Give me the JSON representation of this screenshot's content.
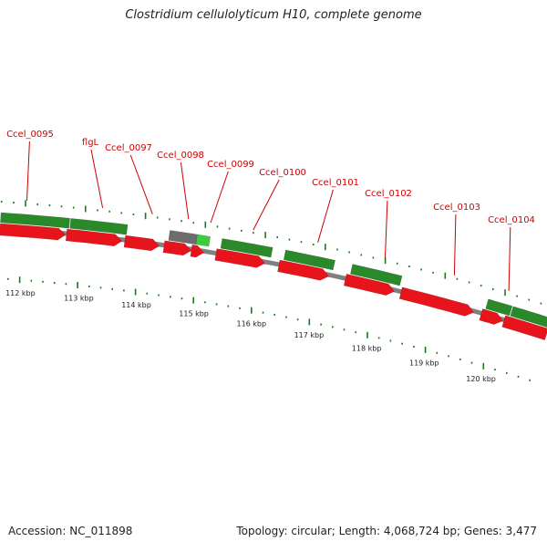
{
  "title": "Clostridium cellulolyticum H10, complete genome",
  "footer": {
    "accession": "Accession: NC_011898",
    "summary": "Topology: circular; Length: 4,068,724 bp; Genes: 3,477"
  },
  "colors": {
    "gene_label": "#cc0000",
    "cds": "#e8141b",
    "gene_green": "#2a8a2a",
    "gene_light_green": "#3dcc3d",
    "gene_grey": "#6c6c6c",
    "backbone": "#808080",
    "ticks": "#1a7a1a"
  },
  "gene_labels": [
    "Ccel_0095",
    "flgL",
    "Ccel_0097",
    "Ccel_0098",
    "Ccel_0099",
    "Ccel_0100",
    "Ccel_0101",
    "Ccel_0102",
    "Ccel_0103",
    "Ccel_0104"
  ],
  "kbp_labels": [
    "112 kbp",
    "113 kbp",
    "114 kbp",
    "115 kbp",
    "116 kbp",
    "117 kbp",
    "118 kbp",
    "119 kbp",
    "120 kbp"
  ]
}
